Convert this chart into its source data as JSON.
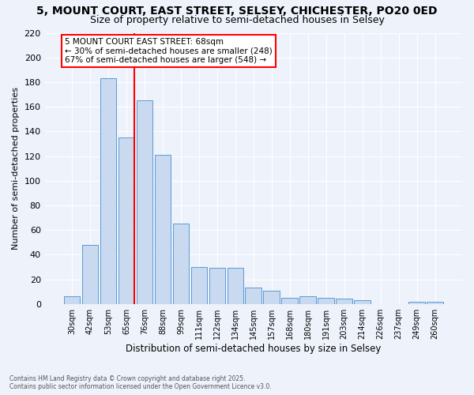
{
  "title": "5, MOUNT COURT, EAST STREET, SELSEY, CHICHESTER, PO20 0ED",
  "subtitle": "Size of property relative to semi-detached houses in Selsey",
  "xlabel": "Distribution of semi-detached houses by size in Selsey",
  "ylabel": "Number of semi-detached properties",
  "categories": [
    "30sqm",
    "42sqm",
    "53sqm",
    "65sqm",
    "76sqm",
    "88sqm",
    "99sqm",
    "111sqm",
    "122sqm",
    "134sqm",
    "145sqm",
    "157sqm",
    "168sqm",
    "180sqm",
    "191sqm",
    "203sqm",
    "214sqm",
    "226sqm",
    "237sqm",
    "249sqm",
    "260sqm"
  ],
  "values": [
    6,
    48,
    183,
    135,
    165,
    121,
    65,
    30,
    29,
    29,
    13,
    11,
    5,
    6,
    5,
    4,
    3,
    0,
    0,
    2,
    2
  ],
  "bar_color": "#c9d9f0",
  "bar_edge_color": "#5b9bd5",
  "background_color": "#eef2fb",
  "grid_color": "#ffffff",
  "annotation_box_text": "5 MOUNT COURT EAST STREET: 68sqm\n← 30% of semi-detached houses are smaller (248)\n67% of semi-detached houses are larger (548) →",
  "vline_x_index": 3,
  "vline_color": "red",
  "footer": "Contains HM Land Registry data © Crown copyright and database right 2025.\nContains public sector information licensed under the Open Government Licence v3.0.",
  "ylim": [
    0,
    220
  ],
  "yticks": [
    0,
    20,
    40,
    60,
    80,
    100,
    120,
    140,
    160,
    180,
    200,
    220
  ],
  "title_fontsize": 10,
  "subtitle_fontsize": 9
}
